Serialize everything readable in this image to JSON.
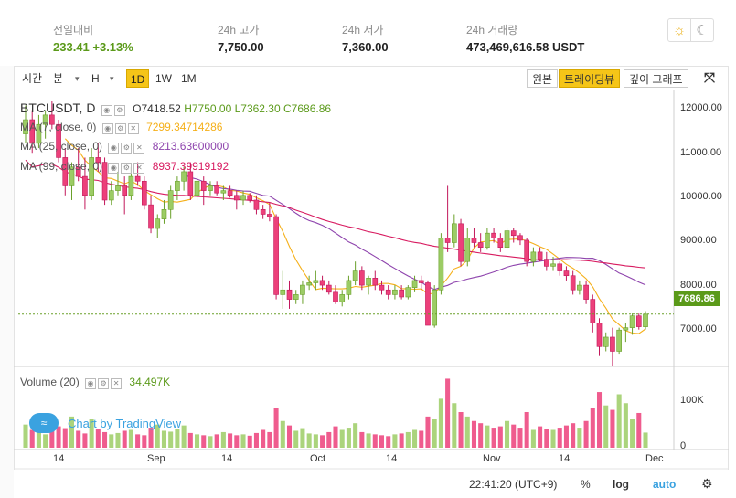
{
  "stats": [
    {
      "label": "전일대비",
      "value": "233.41  +3.13%",
      "positive": true
    },
    {
      "label": "24h 고가",
      "value": "7,750.00"
    },
    {
      "label": "24h 저가",
      "value": "7,360.00"
    },
    {
      "label": "24h 거래량",
      "value": "473,469,616.58 USDT"
    }
  ],
  "theme": {
    "sun_icon": "sun-icon",
    "moon_icon": "moon-icon"
  },
  "toolbar": {
    "time": "시간",
    "minute": "분",
    "hour": "H",
    "day": "1D",
    "week": "1W",
    "month": "1M",
    "dropdown_glyph": "▾",
    "basic": "원본",
    "tradingview": "트레이딩뷰",
    "depth": "깊이 그래프",
    "fullscreen_glyph": "⤧"
  },
  "legend": {
    "symbol": "BTCUSDT, D",
    "open": "O7418.52",
    "high": "H7750.00",
    "low": "L7362.30",
    "close": "C7686.86",
    "ma": [
      {
        "label": "MA (7, close, 0)",
        "value": "7299.34714286",
        "color": "#f5b01a"
      },
      {
        "label": "MA (25, close, 0)",
        "value": "8213.63600000",
        "color": "#8e44ad"
      },
      {
        "label": "MA (99, close, 0)",
        "value": "8937.39919192",
        "color": "#d81b60"
      }
    ],
    "volume_label": "Volume (20)",
    "volume_value": "34.497K"
  },
  "price_axis": [
    "12000.00",
    "11000.00",
    "10000.00",
    "9000.00",
    "8000.00",
    "7000.00"
  ],
  "current_price": "7686.86",
  "volume_axis": [
    "100K",
    "0"
  ],
  "time_axis": [
    "14",
    "Sep",
    "14",
    "Oct",
    "14",
    "Nov",
    "14",
    "Dec"
  ],
  "watermark": {
    "badge": "≈",
    "text": "Chart by TradingView"
  },
  "bottom": {
    "time": "22:41:20 (UTC+9)",
    "percent": "%",
    "log": "log",
    "auto": "auto",
    "gear": "⚙"
  },
  "colors": {
    "up": "#9ccc65",
    "down": "#ec407a",
    "accent": "#f5c518"
  },
  "chart_data": {
    "type": "candlestick",
    "price_range": [
      6600,
      12400
    ],
    "candles": [
      [
        11500,
        12100,
        11300,
        11800
      ],
      [
        11800,
        12000,
        11100,
        11300
      ],
      [
        11300,
        11900,
        11200,
        11700
      ],
      [
        11700,
        12000,
        11400,
        11900
      ],
      [
        11900,
        12200,
        11600,
        11700
      ],
      [
        11700,
        11800,
        10900,
        11000
      ],
      [
        11000,
        11200,
        10200,
        10400
      ],
      [
        10400,
        10900,
        10100,
        10800
      ],
      [
        10800,
        11200,
        10500,
        10600
      ],
      [
        10600,
        11000,
        9900,
        10200
      ],
      [
        10200,
        11200,
        10100,
        11000
      ],
      [
        11000,
        11300,
        10700,
        10900
      ],
      [
        10900,
        11000,
        10000,
        10100
      ],
      [
        10100,
        10500,
        10000,
        10300
      ],
      [
        10300,
        10700,
        10200,
        10400
      ],
      [
        10400,
        10600,
        9800,
        10200
      ],
      [
        10200,
        10800,
        10100,
        10600
      ],
      [
        10600,
        10900,
        10400,
        10500
      ],
      [
        10500,
        10600,
        9900,
        10000
      ],
      [
        10000,
        10200,
        9400,
        9500
      ],
      [
        9500,
        9800,
        9300,
        9700
      ],
      [
        9700,
        10100,
        9600,
        9900
      ],
      [
        9900,
        10400,
        9700,
        10300
      ],
      [
        10300,
        10600,
        10100,
        10500
      ],
      [
        10500,
        10800,
        10300,
        10700
      ],
      [
        10700,
        10900,
        10100,
        10200
      ],
      [
        10200,
        10600,
        10100,
        10500
      ],
      [
        10500,
        10600,
        10000,
        10300
      ],
      [
        10300,
        10500,
        10200,
        10400
      ],
      [
        10400,
        10500,
        10200,
        10250
      ],
      [
        10250,
        10400,
        10100,
        10300
      ],
      [
        10300,
        10400,
        10150,
        10200
      ],
      [
        10200,
        10300,
        9900,
        10100
      ],
      [
        10100,
        10300,
        10000,
        10200
      ],
      [
        10200,
        10250,
        10050,
        10100
      ],
      [
        10100,
        10200,
        9800,
        9900
      ],
      [
        9900,
        10000,
        9700,
        9800
      ],
      [
        9800,
        10050,
        9650,
        9750
      ],
      [
        9750,
        9800,
        8000,
        8100
      ],
      [
        8100,
        8600,
        7800,
        8200
      ],
      [
        8200,
        8400,
        7800,
        8000
      ],
      [
        8000,
        8200,
        7900,
        8100
      ],
      [
        8100,
        8400,
        7900,
        8300
      ],
      [
        8300,
        8500,
        8200,
        8350
      ],
      [
        8350,
        8600,
        8200,
        8400
      ],
      [
        8400,
        8500,
        8200,
        8300
      ],
      [
        8300,
        8400,
        8100,
        8150
      ],
      [
        8150,
        8300,
        7900,
        7950
      ],
      [
        7950,
        8200,
        7850,
        8100
      ],
      [
        8100,
        8500,
        8000,
        8400
      ],
      [
        8400,
        8800,
        8300,
        8600
      ],
      [
        8600,
        8700,
        8200,
        8300
      ],
      [
        8300,
        8500,
        8100,
        8450
      ],
      [
        8450,
        8600,
        8200,
        8300
      ],
      [
        8300,
        8400,
        8100,
        8200
      ],
      [
        8200,
        8300,
        8000,
        8100
      ],
      [
        8100,
        8300,
        8000,
        8200
      ],
      [
        8200,
        8300,
        8000,
        8050
      ],
      [
        8050,
        8300,
        8000,
        8250
      ],
      [
        8250,
        8500,
        8150,
        8400
      ],
      [
        8400,
        8500,
        8200,
        8350
      ],
      [
        8350,
        8400,
        7500,
        7450
      ],
      [
        7450,
        8300,
        7400,
        8200
      ],
      [
        8200,
        9400,
        8100,
        9300
      ],
      [
        9300,
        10400,
        9000,
        9200
      ],
      [
        9200,
        9800,
        9100,
        9600
      ],
      [
        9600,
        9700,
        8700,
        8800
      ],
      [
        8800,
        9500,
        8700,
        9300
      ],
      [
        9300,
        9500,
        9100,
        9200
      ],
      [
        9200,
        9400,
        9000,
        9100
      ],
      [
        9100,
        9500,
        9050,
        9400
      ],
      [
        9400,
        9500,
        9200,
        9300
      ],
      [
        9300,
        9400,
        9000,
        9100
      ],
      [
        9100,
        9500,
        9050,
        9450
      ],
      [
        9450,
        9500,
        9200,
        9350
      ],
      [
        9350,
        9400,
        9150,
        9250
      ],
      [
        9250,
        9300,
        8700,
        8800
      ],
      [
        8800,
        9100,
        8700,
        9000
      ],
      [
        9000,
        9100,
        8800,
        8850
      ],
      [
        8850,
        9000,
        8600,
        8700
      ],
      [
        8700,
        8900,
        8600,
        8750
      ],
      [
        8750,
        8800,
        8500,
        8600
      ],
      [
        8600,
        8700,
        8400,
        8500
      ],
      [
        8500,
        8600,
        8100,
        8200
      ],
      [
        8200,
        8400,
        8100,
        8300
      ],
      [
        8300,
        8400,
        7900,
        8000
      ],
      [
        8000,
        8100,
        7300,
        7500
      ],
      [
        7500,
        7600,
        6800,
        7000
      ],
      [
        7000,
        7300,
        6900,
        7200
      ],
      [
        7200,
        7400,
        6600,
        6900
      ],
      [
        6900,
        7400,
        6850,
        7350
      ],
      [
        7350,
        7500,
        7100,
        7400
      ],
      [
        7400,
        7700,
        7250,
        7650
      ],
      [
        7650,
        7700,
        7360,
        7420
      ],
      [
        7418.52,
        7750,
        7362.3,
        7686.86
      ]
    ],
    "volumes": [
      52,
      40,
      35,
      30,
      55,
      48,
      44,
      70,
      38,
      32,
      65,
      42,
      35,
      30,
      33,
      38,
      40,
      30,
      28,
      45,
      52,
      38,
      36,
      42,
      50,
      33,
      30,
      28,
      26,
      30,
      35,
      32,
      28,
      30,
      27,
      33,
      40,
      35,
      90,
      60,
      50,
      38,
      44,
      32,
      30,
      28,
      35,
      48,
      40,
      45,
      55,
      35,
      32,
      30,
      28,
      26,
      30,
      32,
      35,
      40,
      38,
      70,
      65,
      110,
      155,
      100,
      80,
      70,
      60,
      55,
      50,
      45,
      48,
      60,
      52,
      45,
      80,
      40,
      48,
      42,
      40,
      45,
      50,
      55,
      45,
      60,
      90,
      125,
      95,
      85,
      120,
      100,
      65,
      78,
      34
    ]
  }
}
